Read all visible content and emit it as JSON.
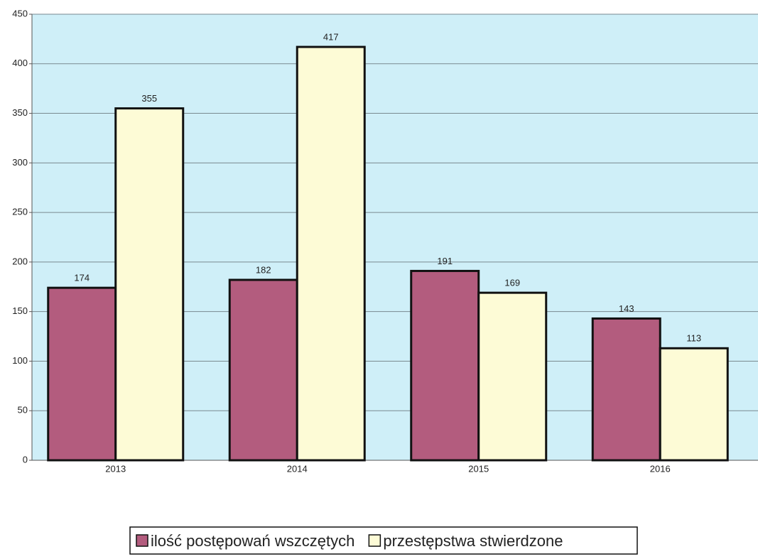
{
  "chart_data": {
    "type": "bar",
    "categories": [
      "2013",
      "2014",
      "2015",
      "2016"
    ],
    "series": [
      {
        "name": "ilość postępowań wszczętych",
        "color": "#b35c7e",
        "values": [
          174,
          182,
          191,
          143
        ]
      },
      {
        "name": "przestępstwa stwierdzone",
        "color": "#fdfbd6",
        "values": [
          355,
          417,
          169,
          113
        ]
      }
    ],
    "ylim": [
      0,
      450
    ],
    "yticks": [
      0,
      50,
      100,
      150,
      200,
      250,
      300,
      350,
      400,
      450
    ],
    "grid": true,
    "legend": "bottom"
  }
}
